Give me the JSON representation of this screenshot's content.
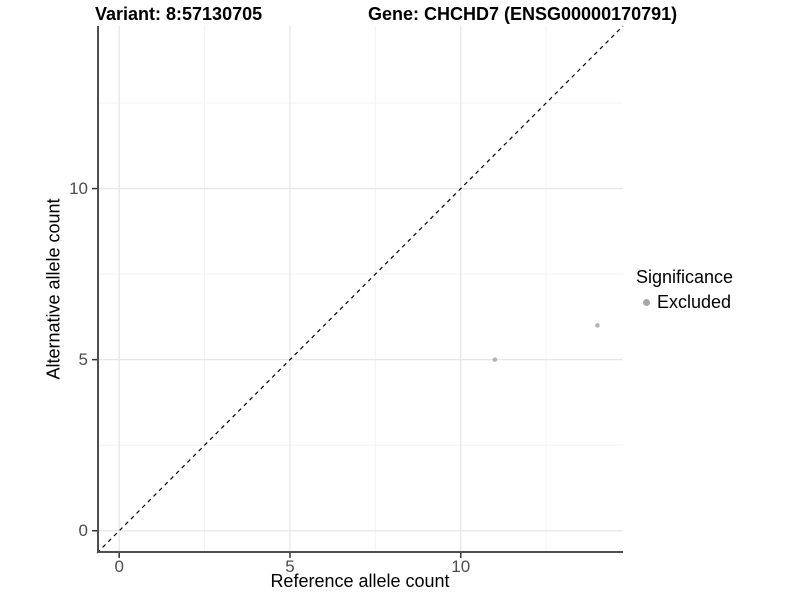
{
  "figure": {
    "title_left": "Variant: 8:57130705",
    "title_right": "Gene: CHCHD7 (ENSG00000170791)"
  },
  "chart_data": {
    "type": "scatter",
    "title": "Variant: 8:57130705 | Gene: CHCHD7 (ENSG00000170791)",
    "xlabel": "Reference allele count",
    "ylabel": "Alternative allele count",
    "xlim": [
      -0.65,
      14.75
    ],
    "ylim": [
      -0.65,
      14.75
    ],
    "x_ticks": [
      0,
      5,
      10
    ],
    "y_ticks": [
      0,
      5,
      10
    ],
    "x_minor_ticks": [
      2.5,
      7.5,
      12.5
    ],
    "y_minor_ticks": [
      2.5,
      7.5,
      12.5
    ],
    "grid": "on",
    "reference_line": {
      "type": "identity",
      "slope": 1,
      "intercept": 0,
      "style": "dashed",
      "color": "#000000"
    },
    "series": [
      {
        "name": "Excluded",
        "marker": "circle",
        "color": "#b5b5b5",
        "points": [
          {
            "x": 11,
            "y": 5
          },
          {
            "x": 14,
            "y": 6
          }
        ]
      }
    ],
    "legend": {
      "title": "Significance",
      "position": "right",
      "entries": [
        {
          "label": "Excluded",
          "color": "#a8a8a8"
        }
      ]
    }
  },
  "style_colors": {
    "axis_line": "#4f4f4f",
    "tick_mark": "#333333",
    "grid_major": "#e7e7e7",
    "grid_minor": "#f3f3f3",
    "tick_text": "#4d4d4d"
  }
}
